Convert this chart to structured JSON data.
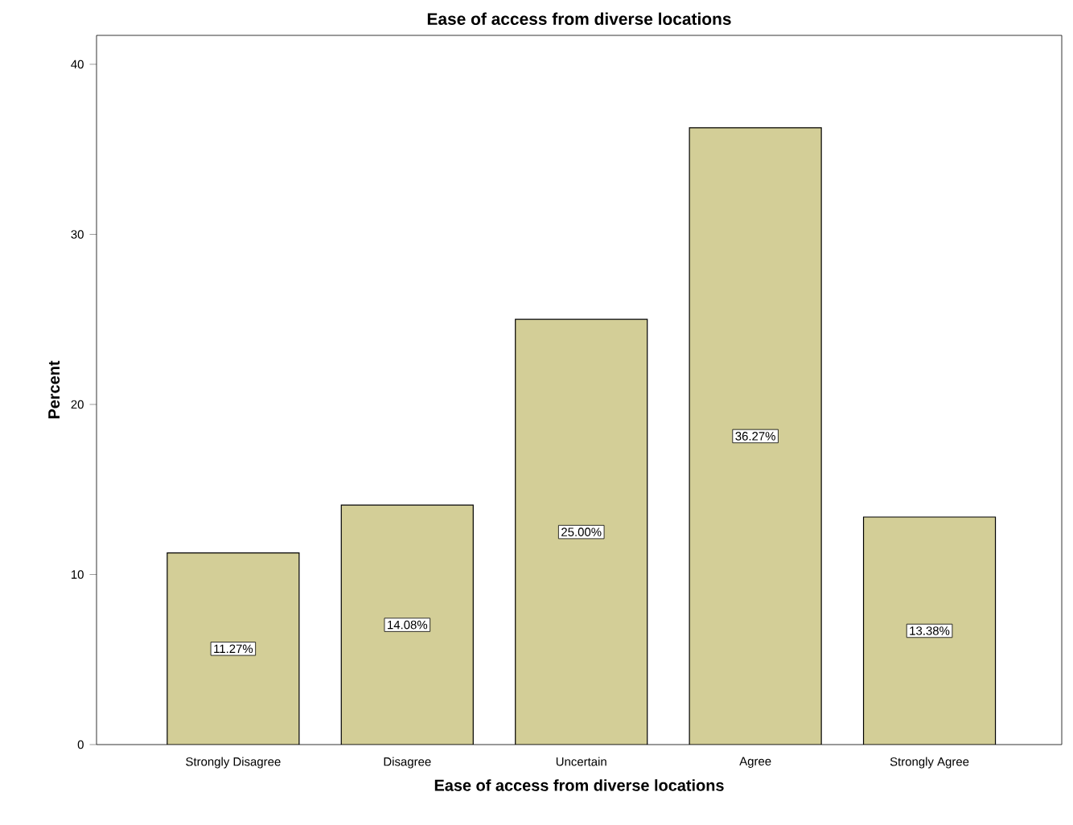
{
  "chart_data": {
    "type": "bar",
    "title": "Ease of access from diverse locations",
    "xlabel": "Ease of access from diverse locations",
    "ylabel": "Percent",
    "categories": [
      "Strongly Disagree",
      "Disagree",
      "Uncertain",
      "Agree",
      "Strongly Agree"
    ],
    "values": [
      11.27,
      14.08,
      25.0,
      36.27,
      13.38
    ],
    "value_labels": [
      "11.27%",
      "14.08%",
      "25.00%",
      "36.27%",
      "13.38%"
    ],
    "color": "#d3ce97",
    "ylim": [
      0,
      41.7
    ],
    "yticks": [
      0,
      10,
      20,
      30,
      40
    ],
    "grid": false
  }
}
